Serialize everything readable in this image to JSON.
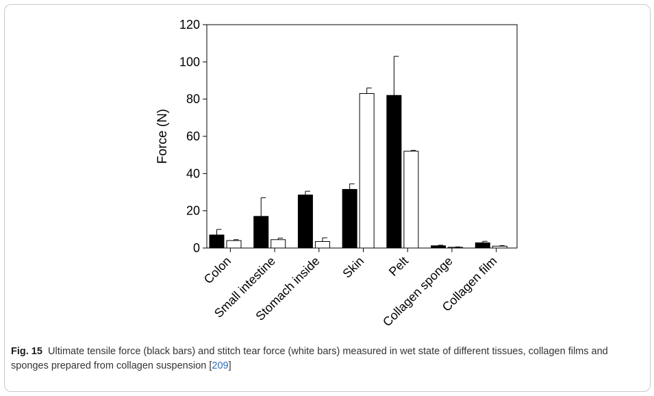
{
  "chart_data": {
    "type": "bar",
    "ylabel": "Force (N)",
    "ylim": [
      0,
      120
    ],
    "yticks": [
      0,
      20,
      40,
      60,
      80,
      100,
      120
    ],
    "categories": [
      "Colon",
      "Small intestine",
      "Stomach inside",
      "Skin",
      "Pelt",
      "Collagen sponge",
      "Collagen film"
    ],
    "series": [
      {
        "color": "#000000",
        "values": [
          7,
          17,
          28.5,
          31.5,
          82,
          1.2,
          2.8
        ],
        "errors": [
          3,
          10,
          2,
          3,
          21,
          0.3,
          0.8
        ]
      },
      {
        "color": "#ffffff",
        "values": [
          4,
          4.5,
          3.5,
          83,
          52,
          0.4,
          1
        ],
        "errors": [
          0.5,
          0.8,
          2,
          3,
          0.5,
          0.2,
          0.3
        ]
      }
    ]
  },
  "caption": {
    "label": "Fig. 15",
    "text": "Ultimate tensile force (black bars) and stitch tear force (white bars) measured in wet state of different tissues, collagen films and sponges prepared from collagen suspension [",
    "ref": "209",
    "close": "]"
  }
}
